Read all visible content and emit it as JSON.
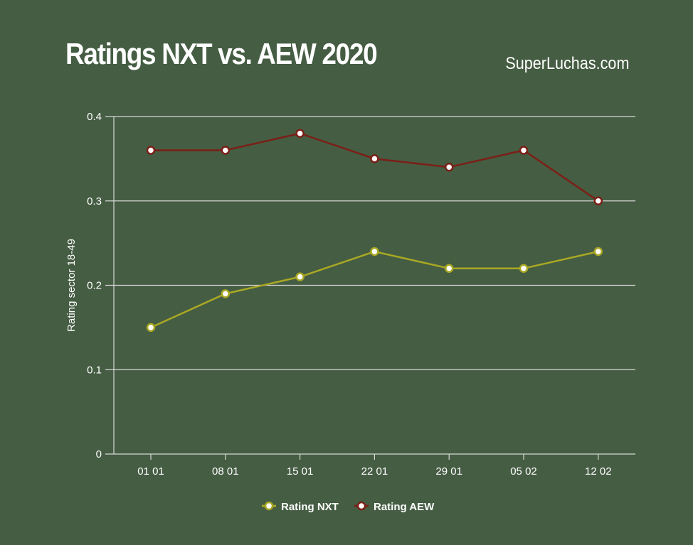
{
  "header": {
    "title": "Ratings NXT vs. AEW 2020",
    "brand": "SuperLuchas.com"
  },
  "chart_data": {
    "type": "line",
    "title": "Ratings NXT vs. AEW 2020",
    "xlabel": "",
    "ylabel": "Rating sector 18-49",
    "ylim": [
      0,
      0.4
    ],
    "yticks": [
      "0",
      "0.1",
      "0.2",
      "0.3",
      "0.4"
    ],
    "grid": true,
    "legend": "bottom",
    "categories": [
      "01 01",
      "08 01",
      "15 01",
      "22 01",
      "29 01",
      "05 02",
      "12 02"
    ],
    "series": [
      {
        "name": "Rating NXT",
        "color": "#a9a824",
        "values": [
          0.15,
          0.19,
          0.21,
          0.24,
          0.22,
          0.22,
          0.24
        ]
      },
      {
        "name": "Rating AEW",
        "color": "#7b1f17",
        "values": [
          0.36,
          0.36,
          0.38,
          0.35,
          0.34,
          0.36,
          0.3
        ]
      }
    ]
  }
}
